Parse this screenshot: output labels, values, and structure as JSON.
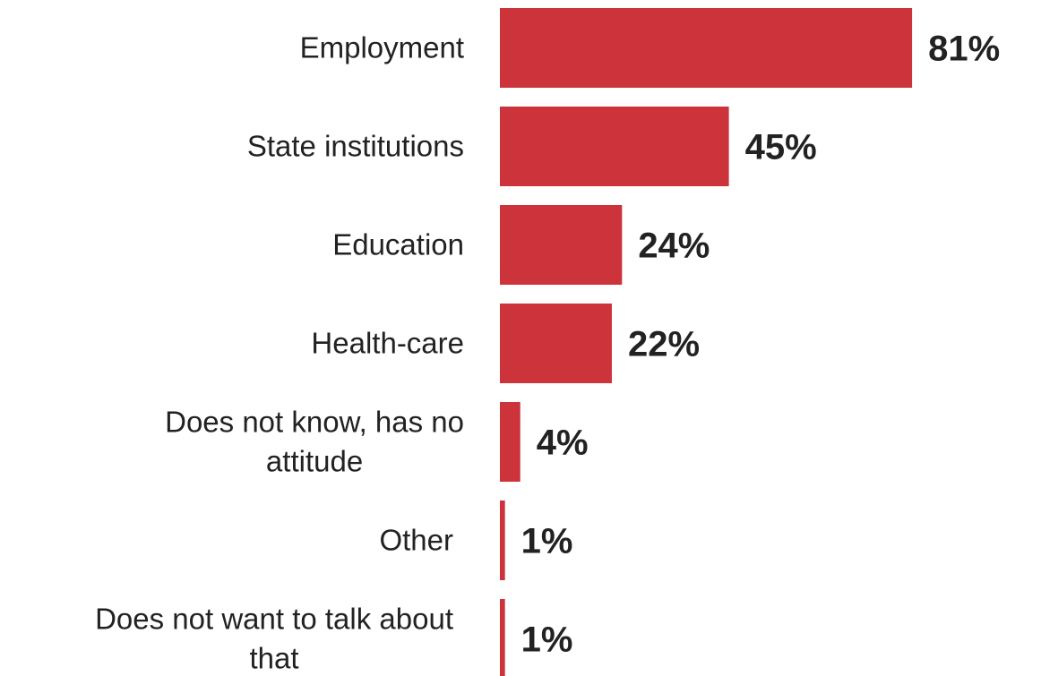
{
  "chart_data": {
    "type": "bar",
    "orientation": "horizontal",
    "categories": [
      "Employment",
      "State institutions",
      "Education",
      "Health-care",
      "Does not know, has no attitude",
      "Other",
      "Does not want to talk about that"
    ],
    "values": [
      81,
      45,
      24,
      22,
      4,
      1,
      1
    ],
    "value_labels": [
      "81%",
      "45%",
      "24%",
      "22%",
      "4%",
      "1%",
      "1%"
    ],
    "unit": "%",
    "xlim": [
      0,
      100
    ],
    "title": "",
    "xlabel": "",
    "ylabel": "",
    "grid": false,
    "legend": "none",
    "bar_color": "#cc333b"
  }
}
